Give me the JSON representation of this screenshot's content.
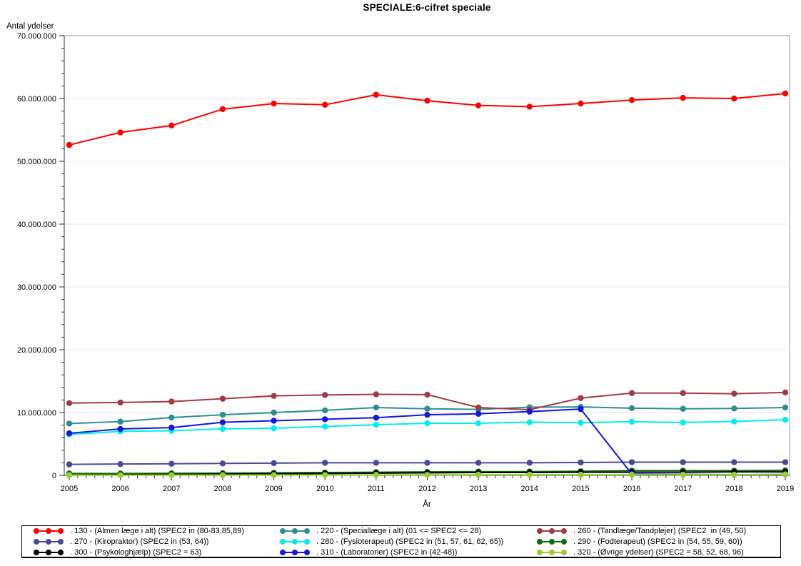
{
  "title": "SPECIALE:6-cifret speciale",
  "chart_data": {
    "type": "line",
    "title": "SPECIALE:6-cifret speciale",
    "xlabel": "År",
    "ylabel": "Antal ydelser",
    "ylim": [
      0,
      70000000
    ],
    "grid": "horizontal-only",
    "legend_position": "bottom-box-3-columns",
    "x": [
      2005,
      2006,
      2007,
      2008,
      2009,
      2010,
      2011,
      2012,
      2013,
      2014,
      2015,
      2016,
      2017,
      2018,
      2019
    ],
    "x_ticks": [
      "2005",
      "2006",
      "2007",
      "2008",
      "2009",
      "2010",
      "2011",
      "2012",
      "2013",
      "2014",
      "2015",
      "2016",
      "2017",
      "2018",
      "2019"
    ],
    "y_ticks": [
      "0",
      "10.000.000",
      "20.000.000",
      "30.000.000",
      "40.000.000",
      "50.000.000",
      "60.000.000",
      "70.000.000"
    ],
    "series": [
      {
        "id": "130",
        "label": ". 130 - (Almen læge i alt) (SPEC2 in (80-83,85,89)",
        "color": "#FF0000",
        "values": [
          52600000,
          54600000,
          55700000,
          58300000,
          59200000,
          59000000,
          60600000,
          59650000,
          58900000,
          58700000,
          59200000,
          59750000,
          60100000,
          60000000,
          60800000
        ]
      },
      {
        "id": "220",
        "label": ". 220 - (Speciallæge i alt) (01 <= SPEC2 <= 28)",
        "color": "#2E8F8F",
        "values": [
          8250000,
          8550000,
          9200000,
          9650000,
          10000000,
          10350000,
          10800000,
          10600000,
          10500000,
          10850000,
          10900000,
          10700000,
          10600000,
          10650000,
          10800000
        ]
      },
      {
        "id": "260",
        "label": ". 260 - (Tandlæge/Tandplejer) (SPEC2  in (49, 50)",
        "color": "#A03B47",
        "values": [
          11500000,
          11600000,
          11750000,
          12200000,
          12650000,
          12800000,
          12900000,
          12850000,
          10800000,
          10450000,
          12300000,
          13100000,
          13100000,
          13000000,
          13200000
        ]
      },
      {
        "id": "270",
        "label": ". 270 - (Kiropraktor) (SPEC2 in (53, 64))",
        "color": "#4B4B93",
        "values": [
          1750000,
          1800000,
          1850000,
          1900000,
          1950000,
          2000000,
          2000000,
          2000000,
          2000000,
          2000000,
          2050000,
          2100000,
          2100000,
          2100000,
          2100000
        ]
      },
      {
        "id": "280",
        "label": ". 280 - (Fysioterapeut) (SPEC2 in (51, 57, 61, 62, 65))",
        "color": "#00EEEE",
        "values": [
          6500000,
          7000000,
          7100000,
          7400000,
          7500000,
          7780000,
          8060000,
          8290000,
          8290000,
          8460000,
          8400000,
          8530000,
          8420000,
          8580000,
          8850000
        ]
      },
      {
        "id": "290",
        "label": ". 290 - (Fodterapeut) (SPEC2 in (54, 55, 59, 60))",
        "color": "#096F11",
        "values": [
          300000,
          300000,
          320000,
          350000,
          400000,
          450000,
          500000,
          550000,
          600000,
          600000,
          650000,
          750000,
          750000,
          750000,
          800000
        ]
      },
      {
        "id": "300",
        "label": ". 300 - (Psykologhjælp) (SPEC2 = 63)",
        "color": "#000000",
        "values": [
          60000,
          100000,
          150000,
          200000,
          250000,
          300000,
          350000,
          400000,
          450000,
          450000,
          500000,
          500000,
          500000,
          550000,
          550000
        ]
      },
      {
        "id": "310",
        "label": ". 310 - (Laboratorier) (SPEC2 in (42-48))",
        "color": "#1515E0",
        "values": [
          6700000,
          7380000,
          7600000,
          8450000,
          8700000,
          8930000,
          9180000,
          9640000,
          9800000,
          10150000,
          10550000,
          200000,
          150000,
          100000,
          150000
        ]
      },
      {
        "id": "320",
        "label": ". 320 - (Øvrige ydelser) (SPEC2 = 58, 52, 68, 96)",
        "color": "#9ACD32",
        "values": [
          30000,
          30000,
          40000,
          40000,
          50000,
          50000,
          80000,
          80000,
          100000,
          100000,
          100000,
          100000,
          100000,
          100000,
          150000
        ]
      }
    ]
  }
}
